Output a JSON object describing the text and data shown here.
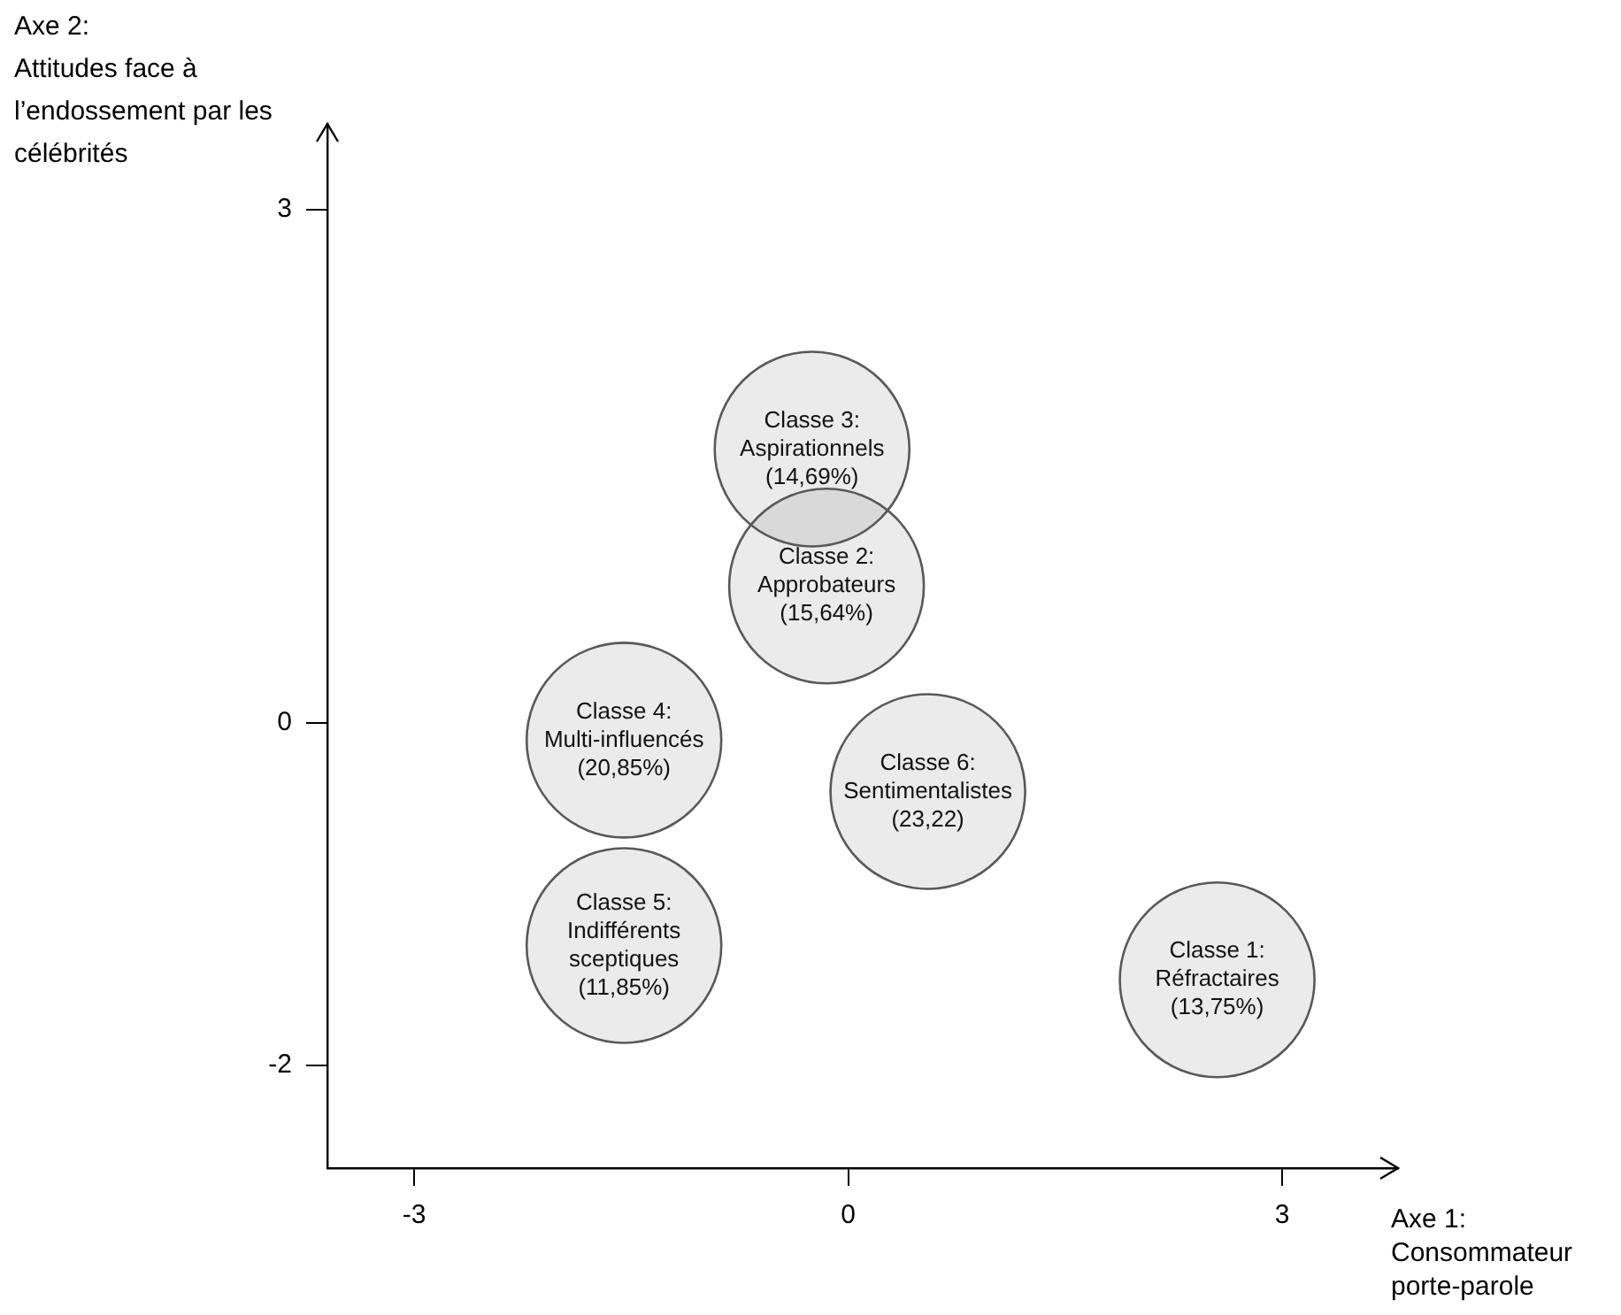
{
  "chart_data": {
    "type": "scatter",
    "xlabel": "Axe 1: Consommateur porte-parole",
    "ylabel": "Axe 2: Attitudes face à l’endossement par les célébrités",
    "xlim": [
      -3.6,
      3.8
    ],
    "ylim": [
      -2.6,
      3.5
    ],
    "xticks": [
      -3,
      0,
      3
    ],
    "yticks": [
      3,
      0,
      -2
    ],
    "grid": false,
    "series": [
      {
        "name": "Classe 3: Aspirationnels (14,69%)",
        "color": "#595959",
        "x": [
          -0.25
        ],
        "values": [
          1.6
        ]
      },
      {
        "name": "Classe 2: Approbateurs (15,64%)",
        "color": "#595959",
        "x": [
          -0.15
        ],
        "values": [
          0.8
        ]
      },
      {
        "name": "Classe 4: Multi-influencés (20,85%)",
        "color": "#595959",
        "x": [
          -1.55
        ],
        "values": [
          -0.1
        ]
      },
      {
        "name": "Classe 6: Sentimentalistes (23,22)",
        "color": "#595959",
        "x": [
          0.55
        ],
        "values": [
          -0.4
        ]
      },
      {
        "name": "Classe 5: Indifférents sceptiques (11,85%)",
        "color": "#595959",
        "x": [
          -1.55
        ],
        "values": [
          -1.3
        ]
      },
      {
        "name": "Classe 1: Réfractaires (13,75%)",
        "color": "#595959",
        "x": [
          2.55
        ],
        "values": [
          -1.5
        ]
      }
    ]
  }
}
